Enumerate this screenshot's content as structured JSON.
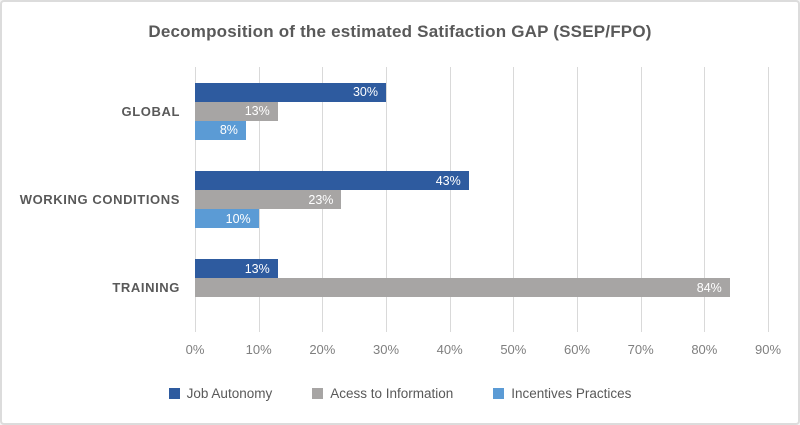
{
  "chart_data": {
    "type": "bar",
    "orientation": "horizontal",
    "title": "Decomposition of the estimated Satifaction GAP (SSEP/FPO)",
    "categories": [
      "GLOBAL",
      "WORKING CONDITIONS",
      "TRAINING"
    ],
    "series": [
      {
        "name": "Job Autonomy",
        "color": "#2E5B9F",
        "values": [
          30,
          43,
          13
        ]
      },
      {
        "name": "Acess to Information",
        "color": "#A7A5A4",
        "values": [
          13,
          23,
          84
        ]
      },
      {
        "name": "Incentives Practices",
        "color": "#5B9BD5",
        "values": [
          8,
          10,
          0
        ]
      }
    ],
    "value_labels": [
      [
        "30%",
        "43%",
        "13%"
      ],
      [
        "13%",
        "23%",
        "84%"
      ],
      [
        "8%",
        "10%",
        ""
      ]
    ],
    "x_ticks": [
      "0%",
      "10%",
      "20%",
      "30%",
      "40%",
      "50%",
      "60%",
      "70%",
      "80%",
      "90%"
    ],
    "xlim": [
      0,
      90
    ],
    "grid": "vertical",
    "legend_position": "bottom",
    "value_label_position": "inside-end"
  },
  "colors": {
    "background": "#FFFFFF",
    "frame_border": "#DCDCDC",
    "gridline": "#D9D9D9",
    "title_text": "#595959",
    "category_text": "#595959",
    "tick_text": "#7F7F7F",
    "value_label_text": "#FFFFFF",
    "legend_text": "#595959"
  }
}
